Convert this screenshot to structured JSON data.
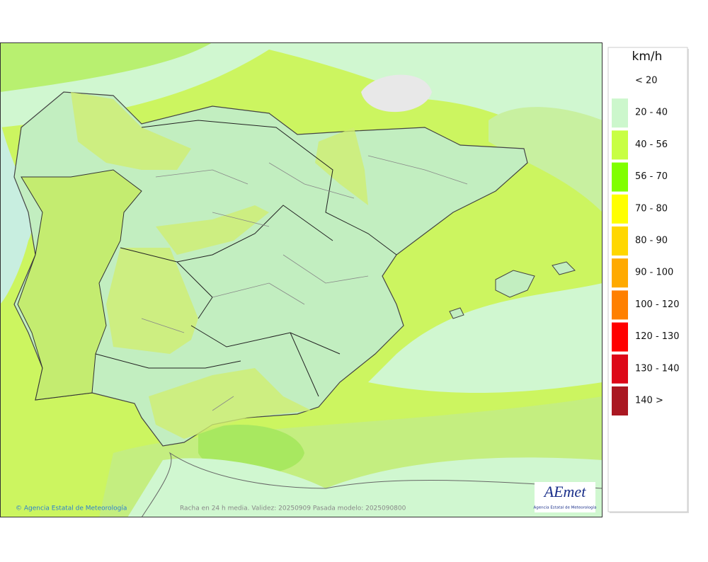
{
  "map": {
    "attribution": "© Agencia Estatal de Meteorología",
    "caption": "Racha en 24 h media. Validez: 20250909 Pasada modelo: 2025090800",
    "logo": {
      "title": "AEmet",
      "subtitle": "Agencia Estatal de Meteorología"
    }
  },
  "legend": {
    "unit": "km/h",
    "items": [
      {
        "label": "< 20"
      },
      {
        "label": "20 - 40",
        "color": "#ccf7cc"
      },
      {
        "label": "40 - 56",
        "color": "#c8ff44"
      },
      {
        "label": "56 - 70",
        "color": "#80ff00"
      },
      {
        "label": "70 - 80",
        "color": "#ffff00"
      },
      {
        "label": "80 - 90",
        "color": "#ffd700"
      },
      {
        "label": "90 - 100",
        "color": "#ffaa00"
      },
      {
        "label": "100 - 120",
        "color": "#ff8000"
      },
      {
        "label": "120 - 130",
        "color": "#ff0000"
      },
      {
        "label": "130 - 140",
        "color": "#dd0818"
      },
      {
        "label": "140 >",
        "color": "#aa1822"
      }
    ]
  }
}
